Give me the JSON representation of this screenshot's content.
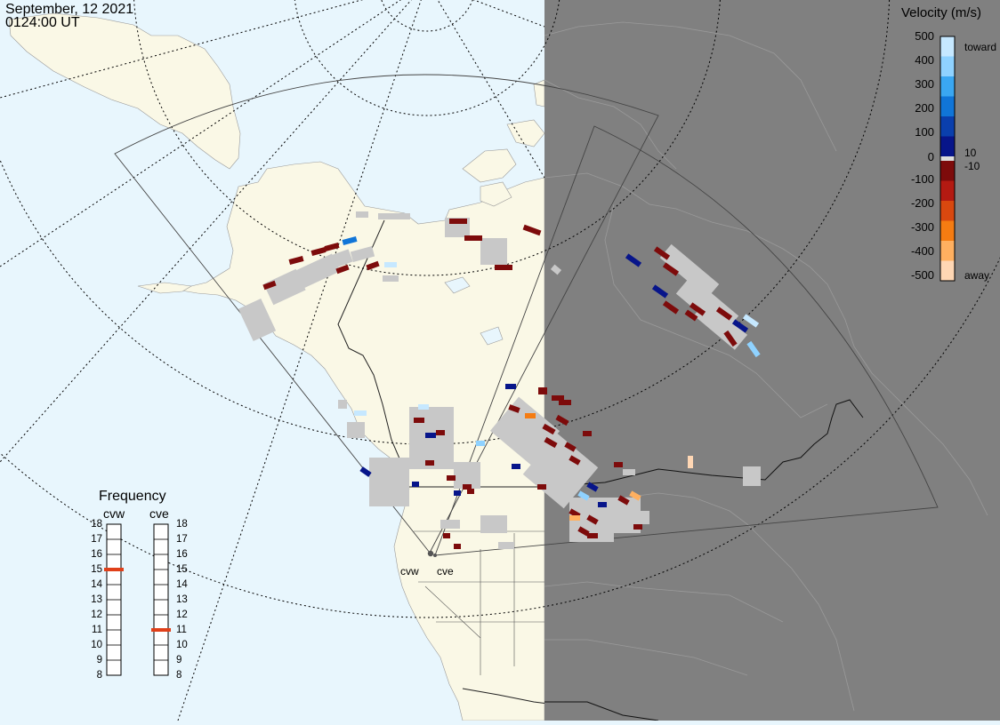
{
  "header": {
    "date": "September, 12 2021",
    "time": "0124:00 UT"
  },
  "velocity_legend": {
    "title": "Velocity (m/s)",
    "ticks": [
      "500",
      "400",
      "300",
      "200",
      "100",
      "0",
      "-100",
      "-200",
      "-300",
      "-400",
      "-500"
    ],
    "inner_labels": [
      "10",
      "-10"
    ],
    "toward_label": "toward",
    "away_label": "away",
    "colors": [
      "#c6e8ff",
      "#8fd2ff",
      "#3aa7f2",
      "#1075d8",
      "#0a3fad",
      "#07158a",
      "#7d0b0b",
      "#b41a12",
      "#d9480f",
      "#f57c12",
      "#ffb060",
      "#ffd7b4"
    ]
  },
  "frequency_legend": {
    "title": "Frequency",
    "radars": [
      "cvw",
      "cve"
    ],
    "ticks": [
      "18",
      "17",
      "16",
      "15",
      "14",
      "13",
      "12",
      "11",
      "10",
      "9",
      "8"
    ],
    "values_mhz": [
      15,
      11
    ],
    "marker_color": "#e0401a"
  },
  "radar_sites": [
    "cvw",
    "cve"
  ],
  "map_colors": {
    "ocean": "#e8f6fd",
    "land": "#faf8e6",
    "night_overlay": "#808080",
    "ground_scatter": "#c8c8c8"
  }
}
